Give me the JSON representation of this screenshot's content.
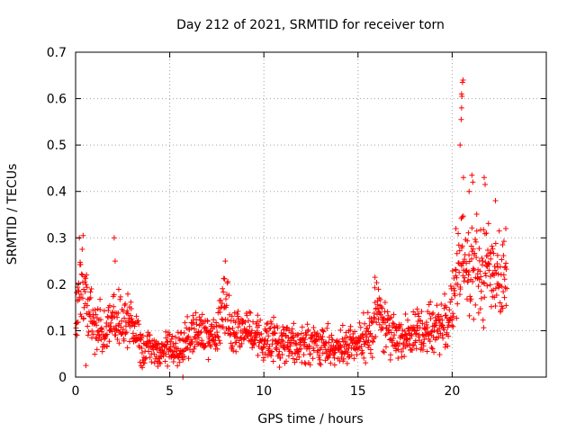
{
  "chart_data": {
    "type": "scatter",
    "title": "Day 212 of 2021, SRMTID for receiver torn",
    "xlabel": "GPS time / hours",
    "ylabel": "SRMTID / TECUs",
    "xlim": [
      0,
      25
    ],
    "ylim": [
      0,
      0.7
    ],
    "x_ticks": [
      0,
      5,
      10,
      15,
      20
    ],
    "x_tick_labels": [
      "0",
      "5",
      "10",
      "15",
      "20"
    ],
    "y_ticks": [
      0,
      0.1,
      0.2,
      0.3,
      0.4,
      0.5,
      0.6,
      0.7
    ],
    "y_tick_labels": [
      "0",
      "0.1",
      "0.2",
      "0.3",
      "0.4",
      "0.5",
      "0.6",
      "0.7"
    ],
    "grid": true,
    "marker": "plus",
    "color": "#ff0000",
    "series": [
      {
        "name": "SRMTID",
        "trend": [
          [
            0.0,
            0.16
          ],
          [
            0.3,
            0.18
          ],
          [
            0.6,
            0.17
          ],
          [
            1.0,
            0.11
          ],
          [
            1.5,
            0.09
          ],
          [
            2.0,
            0.13
          ],
          [
            2.5,
            0.11
          ],
          [
            3.0,
            0.12
          ],
          [
            3.5,
            0.07
          ],
          [
            4.0,
            0.06
          ],
          [
            4.5,
            0.055
          ],
          [
            5.0,
            0.06
          ],
          [
            5.5,
            0.06
          ],
          [
            6.0,
            0.09
          ],
          [
            6.5,
            0.1
          ],
          [
            7.0,
            0.08
          ],
          [
            7.5,
            0.09
          ],
          [
            7.9,
            0.17
          ],
          [
            8.3,
            0.09
          ],
          [
            9.0,
            0.1
          ],
          [
            10.0,
            0.08
          ],
          [
            11.0,
            0.08
          ],
          [
            12.0,
            0.07
          ],
          [
            13.0,
            0.07
          ],
          [
            14.0,
            0.06
          ],
          [
            15.0,
            0.07
          ],
          [
            15.7,
            0.1
          ],
          [
            16.0,
            0.16
          ],
          [
            16.5,
            0.1
          ],
          [
            17.0,
            0.09
          ],
          [
            18.0,
            0.09
          ],
          [
            19.0,
            0.11
          ],
          [
            19.8,
            0.12
          ],
          [
            20.3,
            0.2
          ],
          [
            20.5,
            0.28
          ],
          [
            21.0,
            0.24
          ],
          [
            21.5,
            0.22
          ],
          [
            22.0,
            0.24
          ],
          [
            22.5,
            0.22
          ],
          [
            22.9,
            0.21
          ]
        ],
        "peaks": [
          [
            0.2,
            0.3
          ],
          [
            0.4,
            0.305
          ],
          [
            2.05,
            0.3
          ],
          [
            2.1,
            0.25
          ],
          [
            7.95,
            0.25
          ],
          [
            15.9,
            0.215
          ],
          [
            20.2,
            0.32
          ],
          [
            20.42,
            0.5
          ],
          [
            20.48,
            0.555
          ],
          [
            20.5,
            0.58
          ],
          [
            20.52,
            0.605
          ],
          [
            20.55,
            0.635
          ],
          [
            20.58,
            0.64
          ],
          [
            20.5,
            0.61
          ],
          [
            20.6,
            0.43
          ],
          [
            20.9,
            0.4
          ],
          [
            21.05,
            0.435
          ],
          [
            21.1,
            0.42
          ],
          [
            21.7,
            0.43
          ],
          [
            21.75,
            0.415
          ],
          [
            22.3,
            0.38
          ],
          [
            22.85,
            0.32
          ],
          [
            5.7,
            0.0
          ],
          [
            0.55,
            0.025
          ]
        ]
      }
    ]
  }
}
